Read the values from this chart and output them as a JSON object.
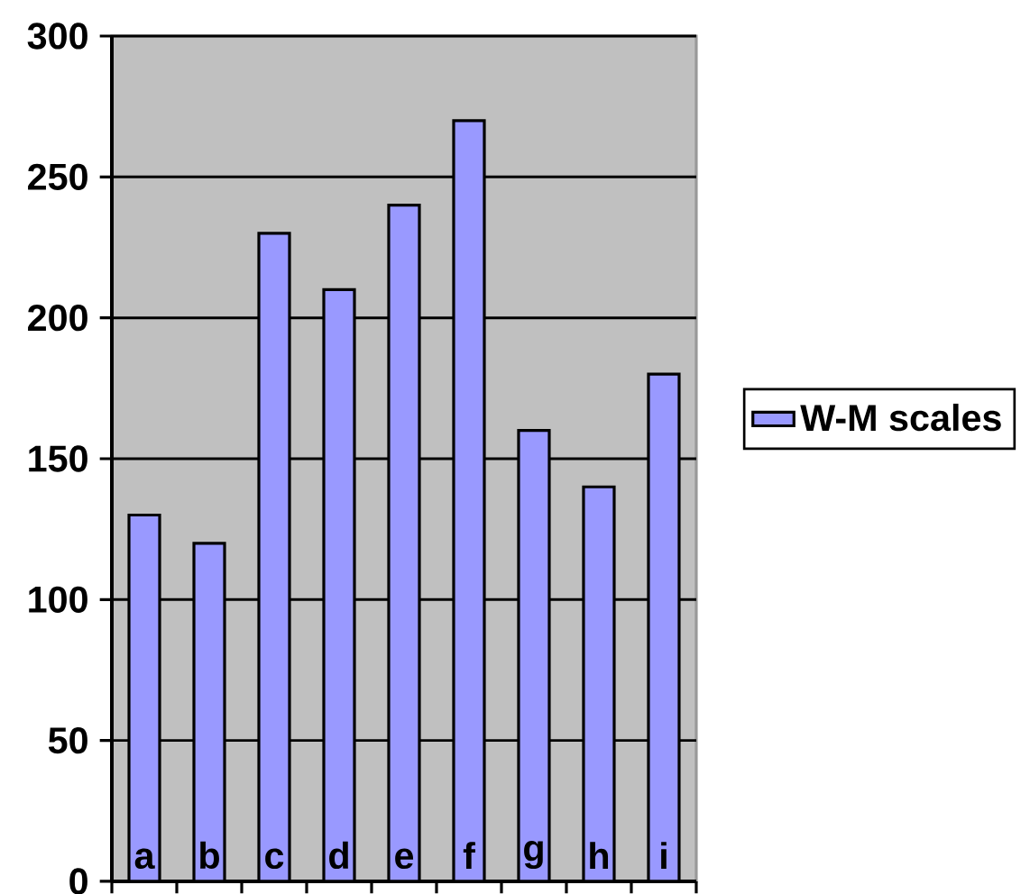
{
  "chart_data": {
    "type": "bar",
    "categories": [
      "a",
      "b",
      "c",
      "d",
      "e",
      "f",
      "g",
      "h",
      "i"
    ],
    "series": [
      {
        "name": "W-M scales",
        "color": "#9999ff",
        "values": [
          130,
          120,
          230,
          210,
          240,
          270,
          160,
          140,
          180
        ]
      }
    ],
    "ylim": [
      0,
      300
    ],
    "yticks": [
      0,
      50,
      100,
      150,
      200,
      250,
      300
    ],
    "grid": "y",
    "legend": "right"
  }
}
